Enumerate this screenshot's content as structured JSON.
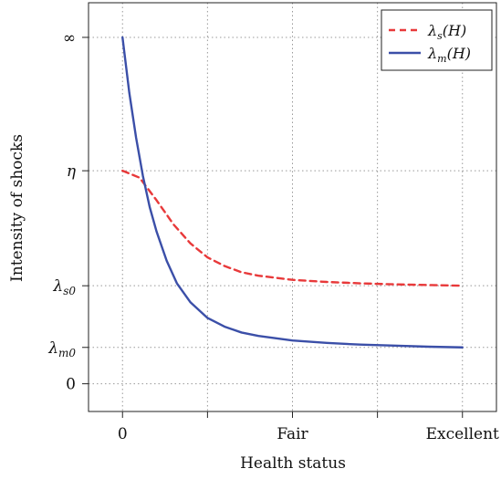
{
  "chart_data": {
    "type": "line",
    "xlabel": "Health status",
    "ylabel": "Intensity of shocks",
    "x_ticks": [
      "0",
      "",
      "Fair",
      "",
      "Excellent"
    ],
    "y_ticks": [
      {
        "label": "∞",
        "value": 1.0
      },
      {
        "label": "η",
        "value": 0.615
      },
      {
        "label": "λs0",
        "value": 0.283
      },
      {
        "label": "λm0",
        "value": 0.105
      },
      {
        "label": "0",
        "value": 0.0
      }
    ],
    "grid": true,
    "legend_position": "top-right",
    "xlim": [
      -0.1,
      1.1
    ],
    "ylim": [
      -0.08,
      1.1
    ],
    "series": [
      {
        "name": "λs(H)",
        "color": "#e8393a",
        "dash": "dashed",
        "x": [
          0,
          0.05,
          0.1,
          0.15,
          0.2,
          0.25,
          0.3,
          0.35,
          0.4,
          0.5,
          0.6,
          0.7,
          0.8,
          0.9,
          1.0
        ],
        "y": [
          0.615,
          0.595,
          0.53,
          0.46,
          0.405,
          0.365,
          0.34,
          0.322,
          0.312,
          0.3,
          0.294,
          0.29,
          0.287,
          0.285,
          0.283
        ]
      },
      {
        "name": "λm(H)",
        "color": "#3b4fa8",
        "dash": "solid",
        "x": [
          0,
          0.02,
          0.04,
          0.06,
          0.08,
          0.1,
          0.13,
          0.16,
          0.2,
          0.25,
          0.3,
          0.35,
          0.4,
          0.5,
          0.6,
          0.7,
          0.8,
          0.9,
          1.0
        ],
        "y": [
          1.0,
          0.84,
          0.71,
          0.6,
          0.51,
          0.44,
          0.355,
          0.29,
          0.235,
          0.19,
          0.165,
          0.148,
          0.138,
          0.125,
          0.118,
          0.113,
          0.11,
          0.107,
          0.105
        ]
      }
    ]
  }
}
